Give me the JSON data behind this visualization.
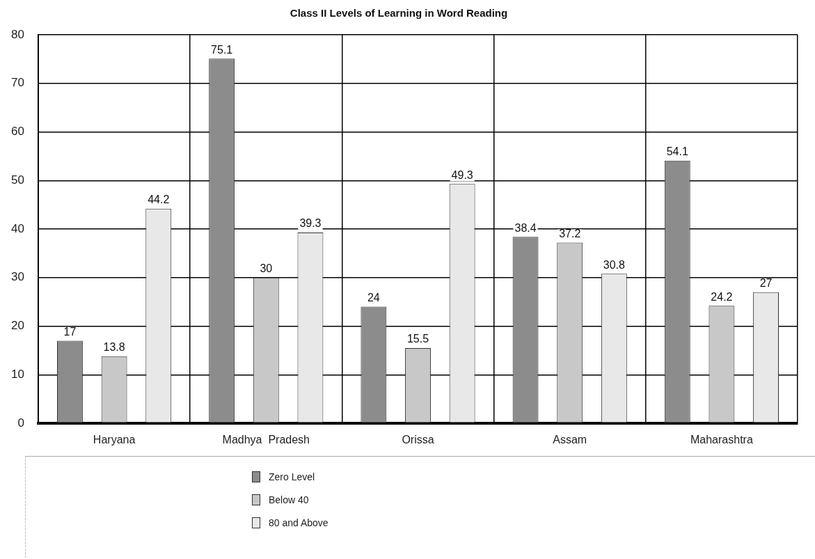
{
  "chart_data": {
    "type": "bar",
    "title": "Class II Levels of Learning in Word Reading",
    "categories": [
      "Haryana",
      "Madhya  Pradesh",
      "Orissa",
      "Assam",
      "Maharashtra"
    ],
    "series": [
      {
        "name": "Zero Level",
        "color": "#8c8c8c",
        "values": [
          17,
          75.1,
          24,
          38.4,
          54.1
        ]
      },
      {
        "name": "Below 40",
        "color": "#c8c8c8",
        "values": [
          13.8,
          30,
          15.5,
          37.2,
          24.2
        ]
      },
      {
        "name": "80 and Above",
        "color": "#e8e8e8",
        "values": [
          44.2,
          39.3,
          49.3,
          30.8,
          27
        ]
      }
    ],
    "ylim": [
      0,
      80
    ],
    "yticks": [
      0,
      10,
      20,
      30,
      40,
      50,
      60,
      70,
      80
    ],
    "grid": true,
    "legend": "bottom",
    "data_labels": true
  }
}
